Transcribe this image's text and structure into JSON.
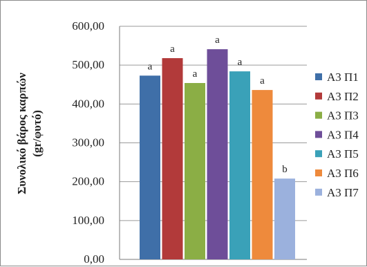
{
  "chart_data": {
    "type": "bar",
    "ylabel_line1": "Συνολικό βάρος καρπών",
    "ylabel_line2": "(gr/φυτό)",
    "ylim": [
      0,
      600
    ],
    "yticks": [
      "0,00",
      "100,00",
      "200,00",
      "300,00",
      "400,00",
      "500,00",
      "600,00"
    ],
    "grid": true,
    "legend_position": "right",
    "series": [
      {
        "name": "Α3 Π1",
        "value": 473,
        "label": "a",
        "color": "#3f6fa8"
      },
      {
        "name": "Α3 Π2",
        "value": 518,
        "label": "a",
        "color": "#b23a3a"
      },
      {
        "name": "Α3 Π3",
        "value": 454,
        "label": "a",
        "color": "#8bae45"
      },
      {
        "name": "Α3 Π4",
        "value": 541,
        "label": "a",
        "color": "#6e4e99"
      },
      {
        "name": "Α3 Π5",
        "value": 484,
        "label": "a",
        "color": "#3aa1b8"
      },
      {
        "name": "Α3 Π6",
        "value": 436,
        "label": "a",
        "color": "#ee8a3c"
      },
      {
        "name": "Α3 Π7",
        "value": 208,
        "label": "b",
        "color": "#9bb1dd"
      }
    ]
  }
}
